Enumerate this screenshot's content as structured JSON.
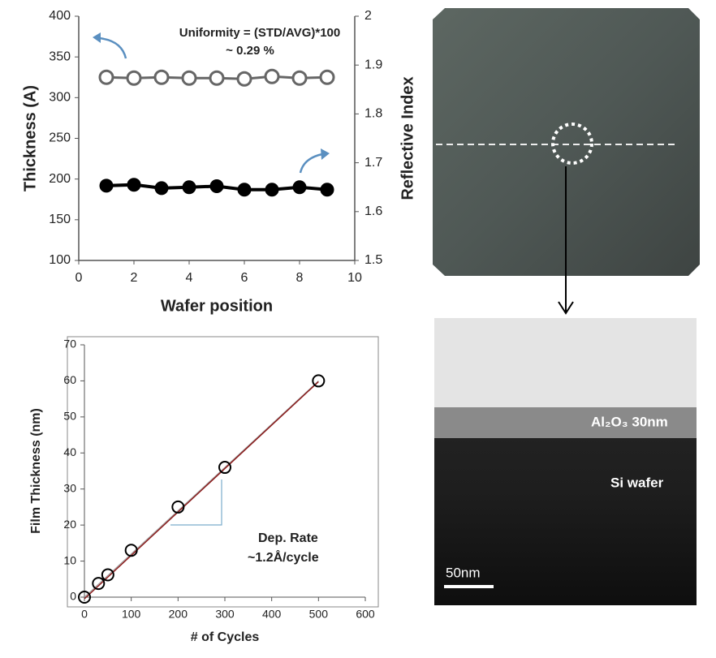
{
  "chart_data": [
    {
      "type": "line",
      "x": [
        1,
        2,
        3,
        4,
        5,
        6,
        7,
        8,
        9
      ],
      "series": [
        {
          "color": "#666666",
          "marker": "open",
          "values": [
            325,
            324,
            325,
            324,
            324,
            323,
            326,
            324,
            325
          ]
        },
        {
          "color": "#000000",
          "marker": "filled",
          "axis": "y2",
          "values": [
            1.653,
            1.655,
            1.648,
            1.65,
            1.652,
            1.645,
            1.645,
            1.65,
            1.645
          ]
        }
      ],
      "xlim": [
        0,
        10
      ],
      "xticks": [
        0,
        2,
        4,
        6,
        8,
        10
      ],
      "ylim": [
        100,
        400
      ],
      "yticks": [
        100,
        150,
        200,
        250,
        300,
        350,
        400
      ],
      "y2lim": [
        1.5,
        2
      ],
      "y2ticks": [
        1.5,
        1.6,
        1.7,
        1.8,
        1.9,
        2
      ],
      "x_label": "Wafer position",
      "y_label": "Thickness (A)",
      "y2_label": "Reflective Index",
      "annotations": [
        "Uniformity = (STD/AVG)*100",
        "~ 0.29 %"
      ]
    },
    {
      "type": "scatter",
      "x": [
        0,
        30,
        50,
        100,
        200,
        300,
        500
      ],
      "values": [
        0,
        3.8,
        6.2,
        13,
        25,
        36,
        60
      ],
      "color": "#000000",
      "fit_color": "#8b1a1a",
      "xlim": [
        0,
        600
      ],
      "xticks": [
        0,
        100,
        200,
        300,
        400,
        500,
        600
      ],
      "ylim": [
        0,
        70
      ],
      "yticks": [
        0,
        10,
        20,
        30,
        40,
        50,
        60,
        70
      ],
      "x_label": "# of Cycles",
      "y_label": "Film Thickness (nm)",
      "annotations": [
        "Dep. Rate",
        "~1.2Å/cycle"
      ]
    }
  ],
  "images": {
    "tem_labels": [
      "Al₂O₃ 30nm",
      "Si wafer"
    ],
    "scale_bar": "50nm"
  }
}
